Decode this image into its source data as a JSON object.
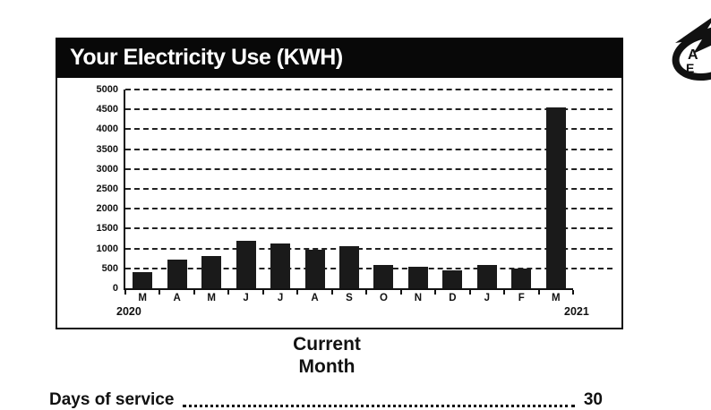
{
  "chart_data": {
    "type": "bar",
    "title": "Your Electricity Use (KWH)",
    "categories": [
      "M",
      "A",
      "M",
      "J",
      "J",
      "A",
      "S",
      "O",
      "N",
      "D",
      "J",
      "F",
      "M"
    ],
    "values": [
      400,
      720,
      820,
      1200,
      1130,
      960,
      1060,
      580,
      540,
      450,
      590,
      490,
      4550
    ],
    "ylim": [
      0,
      5000
    ],
    "ytick_step": 500,
    "ytick_labels": [
      "5000",
      "4500",
      "4000",
      "3500",
      "3000",
      "2500",
      "2000",
      "1500",
      "1000",
      "500",
      "0"
    ],
    "xlabel": "Current Month",
    "xlabel_lines": [
      "Current",
      "Month"
    ],
    "year_left": "2020",
    "year_right": "2021",
    "grid": "horizontal-dashed",
    "legend_position": "none",
    "bar_color": "#1a1a1a"
  },
  "logo": {
    "name": "electric-utility-logo",
    "letter_top": "A",
    "letter_bottom": "E"
  },
  "footer": {
    "label": "Days of service",
    "value": "30"
  }
}
